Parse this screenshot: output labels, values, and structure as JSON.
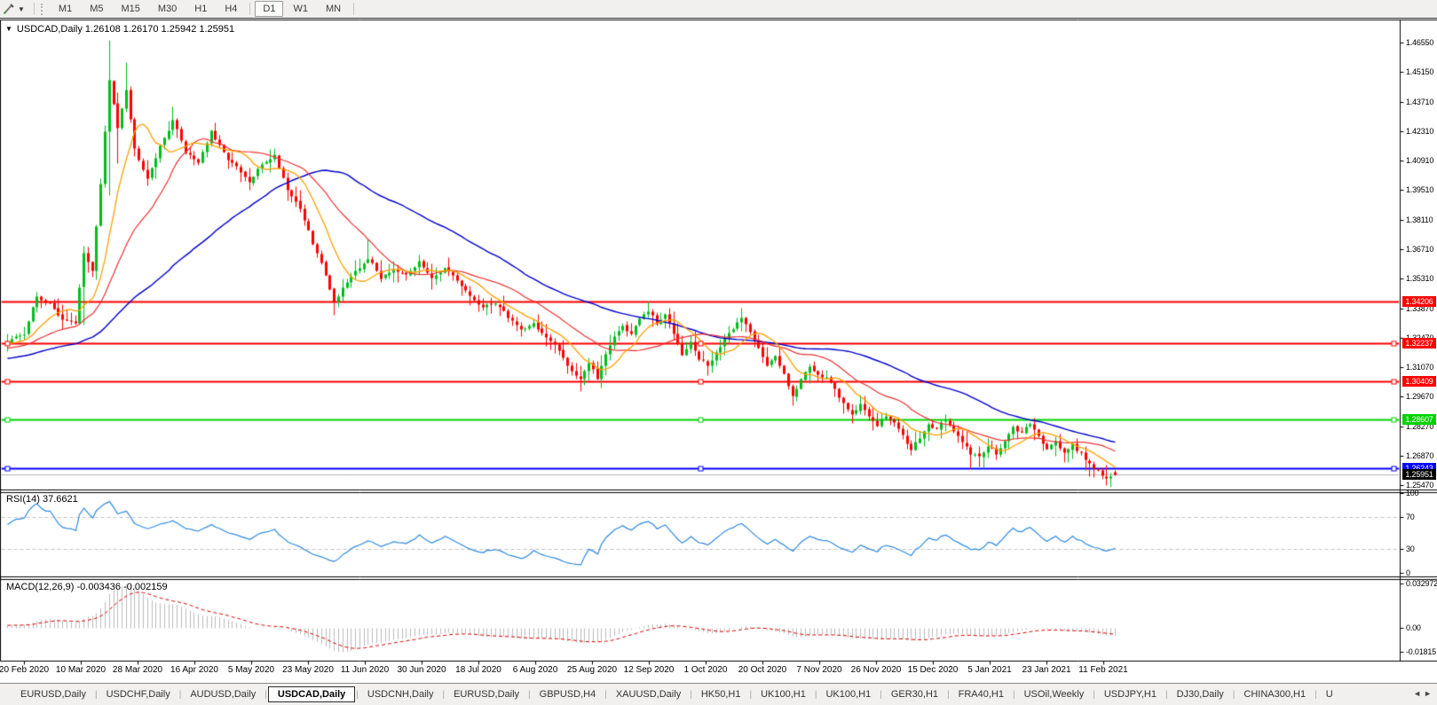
{
  "icons": {
    "collapse": "▼",
    "caret": "▼",
    "tab_left": "◄",
    "tab_right": "►"
  },
  "toolbar": {
    "timeframes": [
      "M1",
      "M5",
      "M15",
      "M30",
      "H1",
      "H4",
      "D1",
      "W1",
      "MN"
    ],
    "active_timeframe": "D1"
  },
  "chart": {
    "symbol": "USDCAD",
    "period": "Daily",
    "title_text": "USDCAD,Daily  1.26108 1.26170 1.25942 1.25951"
  },
  "price_axis": {
    "ticks": [
      "1.46550",
      "1.45150",
      "1.43710",
      "1.42310",
      "1.40910",
      "1.39510",
      "1.38110",
      "1.36710",
      "1.35310",
      "1.33870",
      "1.32470",
      "1.31070",
      "1.29670",
      "1.28270",
      "1.26870",
      "1.25470"
    ]
  },
  "hlines": [
    {
      "label": "1.34206",
      "color": "#ff0000",
      "selected": false
    },
    {
      "label": "1.32237",
      "color": "#ff0000",
      "selected": true
    },
    {
      "label": "1.30409",
      "color": "#ff0000",
      "selected": true
    },
    {
      "label": "1.28607",
      "color": "#00d300",
      "selected": true
    },
    {
      "label": "1.26243",
      "color": "#0000ff",
      "selected": true
    }
  ],
  "bid_label": "1.25951",
  "date_axis": [
    "20 Feb 2020",
    "10 Mar 2020",
    "28 Mar 2020",
    "16 Apr 2020",
    "5 May 2020",
    "23 May 2020",
    "11 Jun 2020",
    "30 Jun 2020",
    "18 Jul 2020",
    "6 Aug 2020",
    "25 Aug 2020",
    "12 Sep 2020",
    "1 Oct 2020",
    "20 Oct 2020",
    "7 Nov 2020",
    "26 Nov 2020",
    "15 Dec 2020",
    "5 Jan 2021",
    "23 Jan 2021",
    "11 Feb 2021"
  ],
  "rsi": {
    "title": "RSI(14)",
    "value": "37.6621",
    "levels": [
      "100",
      "70",
      "30",
      "0"
    ],
    "dashed_levels": [
      70,
      30
    ],
    "line_color": "#2f8be0"
  },
  "macd": {
    "title": "MACD(12,26,9)",
    "values": "-0.003436 -0.002159",
    "levels": [
      "0.032972",
      "0.00",
      "-0.01815"
    ],
    "histogram_color": "#bcbcbc",
    "signal_color": "#e00000"
  },
  "tabs": {
    "items": [
      "EURUSD,Daily",
      "USDCHF,Daily",
      "AUDUSD,Daily",
      "USDCAD,Daily",
      "USDCNH,Daily",
      "EURUSD,Daily",
      "GBPUSD,H4",
      "XAUUSD,Daily",
      "HK50,H1",
      "UK100,H1",
      "UK100,H1",
      "GER30,H1",
      "FRA40,H1",
      "USOil,Weekly",
      "USDJPY,H1",
      "DJ30,Daily",
      "CHINA300,H1",
      "U"
    ],
    "active_index": 3
  },
  "chart_data": {
    "type": "candlestick",
    "symbol": "USDCAD",
    "timeframe": "Daily",
    "last_ohlc": {
      "open": 1.26108,
      "high": 1.2617,
      "low": 1.25942,
      "close": 1.25951
    },
    "price_range": [
      1.2525,
      1.476
    ],
    "candle_count": 262,
    "up_color": "#00bd1c",
    "down_color": "#ff0000",
    "anchors": [
      [
        0,
        1.3235
      ],
      [
        4,
        1.3268
      ],
      [
        7,
        1.3448
      ],
      [
        10,
        1.3408
      ],
      [
        13,
        1.3342
      ],
      [
        16,
        1.3315
      ],
      [
        18,
        1.365
      ],
      [
        20,
        1.3572
      ],
      [
        22,
        1.3985
      ],
      [
        24,
        1.4472
      ],
      [
        26,
        1.4258
      ],
      [
        28,
        1.4438
      ],
      [
        30,
        1.4148
      ],
      [
        33,
        1.4015
      ],
      [
        36,
        1.4158
      ],
      [
        39,
        1.4288
      ],
      [
        42,
        1.4138
      ],
      [
        45,
        1.4088
      ],
      [
        48,
        1.4228
      ],
      [
        51,
        1.4128
      ],
      [
        54,
        1.4058
      ],
      [
        57,
        1.3988
      ],
      [
        60,
        1.4078
      ],
      [
        63,
        1.4118
      ],
      [
        66,
        1.3958
      ],
      [
        69,
        1.3868
      ],
      [
        72,
        1.3698
      ],
      [
        75,
        1.3555
      ],
      [
        77,
        1.3418
      ],
      [
        79,
        1.3488
      ],
      [
        82,
        1.3558
      ],
      [
        85,
        1.3628
      ],
      [
        88,
        1.3538
      ],
      [
        91,
        1.3578
      ],
      [
        94,
        1.3558
      ],
      [
        97,
        1.3608
      ],
      [
        100,
        1.3542
      ],
      [
        103,
        1.3578
      ],
      [
        106,
        1.3518
      ],
      [
        109,
        1.3448
      ],
      [
        112,
        1.3392
      ],
      [
        115,
        1.3418
      ],
      [
        118,
        1.3352
      ],
      [
        121,
        1.3288
      ],
      [
        124,
        1.3318
      ],
      [
        127,
        1.3248
      ],
      [
        130,
        1.3188
      ],
      [
        133,
        1.3092
      ],
      [
        135,
        1.3058
      ],
      [
        137,
        1.3128
      ],
      [
        139,
        1.3058
      ],
      [
        141,
        1.3178
      ],
      [
        143,
        1.3258
      ],
      [
        145,
        1.3308
      ],
      [
        147,
        1.3268
      ],
      [
        149,
        1.3338
      ],
      [
        151,
        1.3378
      ],
      [
        153,
        1.3318
      ],
      [
        155,
        1.3358
      ],
      [
        157,
        1.3278
      ],
      [
        159,
        1.3178
      ],
      [
        161,
        1.3228
      ],
      [
        163,
        1.3148
      ],
      [
        165,
        1.3118
      ],
      [
        167,
        1.3178
      ],
      [
        169,
        1.3238
      ],
      [
        171,
        1.3298
      ],
      [
        173,
        1.3348
      ],
      [
        175,
        1.3278
      ],
      [
        177,
        1.3208
      ],
      [
        179,
        1.3118
      ],
      [
        181,
        1.3158
      ],
      [
        183,
        1.3078
      ],
      [
        185,
        1.2978
      ],
      [
        187,
        1.3048
      ],
      [
        189,
        1.3118
      ],
      [
        191,
        1.3078
      ],
      [
        193,
        1.3058
      ],
      [
        195,
        1.2998
      ],
      [
        197,
        1.2938
      ],
      [
        199,
        1.2888
      ],
      [
        201,
        1.2928
      ],
      [
        203,
        1.2878
      ],
      [
        205,
        1.2838
      ],
      [
        207,
        1.2878
      ],
      [
        209,
        1.2838
      ],
      [
        211,
        1.2788
      ],
      [
        213,
        1.2718
      ],
      [
        215,
        1.2778
      ],
      [
        217,
        1.2838
      ],
      [
        219,
        1.2818
      ],
      [
        221,
        1.2858
      ],
      [
        223,
        1.2808
      ],
      [
        225,
        1.2748
      ],
      [
        227,
        1.2698
      ],
      [
        229,
        1.2678
      ],
      [
        231,
        1.2738
      ],
      [
        233,
        1.2698
      ],
      [
        235,
        1.2758
      ],
      [
        237,
        1.2818
      ],
      [
        239,
        1.2798
      ],
      [
        241,
        1.2838
      ],
      [
        243,
        1.2778
      ],
      [
        245,
        1.2728
      ],
      [
        247,
        1.2758
      ],
      [
        249,
        1.2698
      ],
      [
        251,
        1.2738
      ],
      [
        253,
        1.2698
      ],
      [
        255,
        1.2648
      ],
      [
        257,
        1.2618
      ],
      [
        259,
        1.2578
      ],
      [
        261,
        1.2595
      ]
    ],
    "extremes": {
      "7": {
        "h": 1.3468
      },
      "18": {
        "h": 1.3685,
        "l": 1.331
      },
      "24": {
        "h": 1.4669,
        "l": 1.3928
      },
      "26": {
        "l": 1.408
      },
      "28": {
        "h": 1.4562
      },
      "39": {
        "h": 1.435
      },
      "77": {
        "l": 1.3356
      },
      "85": {
        "h": 1.3716
      },
      "135": {
        "l": 1.2994
      },
      "151": {
        "h": 1.3422
      },
      "173": {
        "h": 1.339
      },
      "185": {
        "l": 1.2928
      },
      "213": {
        "l": 1.2688
      },
      "227": {
        "l": 1.2626
      },
      "255": {
        "l": 1.259
      },
      "259": {
        "l": 1.2547
      },
      "261": {
        "o": 1.26108,
        "h": 1.2617,
        "l": 1.25942,
        "c": 1.25951
      }
    },
    "overlays": [
      {
        "name": "ma-fast",
        "color": "#ffa000"
      },
      {
        "name": "ma-medium",
        "color": "#ee3232"
      },
      {
        "name": "ma-slow",
        "color": "#0000cd"
      }
    ],
    "hline_values": [
      1.34206,
      1.32237,
      1.30409,
      1.28607,
      1.26243
    ],
    "bid": 1.25951,
    "rsi_last": 37.6621,
    "rsi_levels": [
      70,
      30
    ],
    "macd_last": [
      -0.003436,
      -0.002159
    ],
    "macd_axis_range": [
      -0.01815,
      0.032972
    ]
  }
}
